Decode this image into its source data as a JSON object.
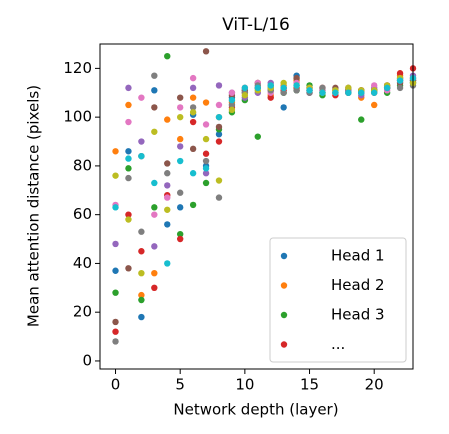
{
  "chart_data": {
    "type": "scatter",
    "title": "ViT-L/16",
    "x_label": "Network depth (layer)",
    "y_label": "Mean attention distance (pixels)",
    "x": [
      0,
      1,
      2,
      3,
      4,
      5,
      6,
      7,
      8,
      9,
      10,
      11,
      12,
      13,
      14,
      15,
      16,
      17,
      18,
      19,
      20,
      21,
      22,
      23
    ],
    "xlim": [
      -1.2,
      23.0
    ],
    "ylim": [
      -3.3,
      130
    ],
    "xticks": [
      0,
      5,
      10,
      15,
      20
    ],
    "yticks": [
      0,
      20,
      40,
      60,
      80,
      100,
      120
    ],
    "legend": "lower right",
    "series": [
      {
        "name": "Head 1",
        "color": "#1f77b4",
        "values": [
          37,
          86,
          18,
          111,
          56,
          63,
          101,
          80,
          93,
          108,
          111,
          114,
          112,
          104,
          117,
          112,
          111,
          110,
          111,
          110,
          111,
          112,
          116,
          115
        ]
      },
      {
        "name": "Head 2",
        "color": "#ff7f0e",
        "values": [
          86,
          105,
          27,
          36,
          99,
          91,
          108,
          106,
          100,
          106,
          112,
          114,
          109,
          113,
          115,
          112,
          110,
          110,
          110,
          108,
          105,
          112,
          117,
          116
        ]
      },
      {
        "name": "Head 3",
        "color": "#2ca02c",
        "values": [
          28,
          79,
          25,
          63,
          125,
          52,
          64,
          73,
          95,
          102,
          107,
          92,
          113,
          110,
          111,
          113,
          109,
          110,
          111,
          99,
          111,
          110,
          113,
          114
        ]
      },
      {
        "name": "...",
        "color": "#d62728",
        "values": [
          12,
          60,
          45,
          30,
          68,
          50,
          98,
          85,
          90,
          104,
          110,
          112,
          108,
          111,
          112,
          111,
          112,
          109,
          110,
          111,
          110,
          113,
          118,
          120
        ]
      },
      {
        "color": "#9467bd",
        "values": [
          48,
          112,
          90,
          47,
          72,
          88,
          112,
          77,
          113,
          110,
          108,
          110,
          114,
          112,
          113,
          110,
          111,
          111,
          111,
          109,
          112,
          113,
          115,
          117
        ]
      },
      {
        "color": "#8c564b",
        "values": [
          16,
          38,
          84,
          104,
          81,
          108,
          87,
          127,
          96,
          109,
          111,
          112,
          111,
          112,
          116,
          111,
          110,
          112,
          112,
          111,
          111,
          112,
          114,
          115
        ]
      },
      {
        "color": "#e377c2",
        "values": [
          64,
          98,
          108,
          60,
          67,
          104,
          116,
          97,
          105,
          110,
          112,
          114,
          110,
          112,
          114,
          112,
          111,
          110,
          110,
          110,
          113,
          111,
          115,
          116
        ]
      },
      {
        "color": "#7f7f7f",
        "values": [
          8,
          75,
          53,
          117,
          77,
          69,
          104,
          82,
          67,
          105,
          110,
          113,
          111,
          110,
          111,
          110,
          112,
          111,
          110,
          110,
          111,
          112,
          112,
          113
        ]
      },
      {
        "color": "#bcbd22",
        "values": [
          76,
          58,
          36,
          94,
          62,
          100,
          102,
          91,
          74,
          103,
          109,
          111,
          112,
          114,
          113,
          112,
          110,
          111,
          112,
          111,
          111,
          113,
          116,
          114
        ]
      },
      {
        "color": "#17becf",
        "values": [
          63,
          83,
          84,
          73,
          40,
          82,
          77,
          79,
          100,
          107,
          112,
          112,
          113,
          112,
          113,
          111,
          110,
          110,
          110,
          110,
          110,
          112,
          115,
          116
        ]
      }
    ]
  }
}
